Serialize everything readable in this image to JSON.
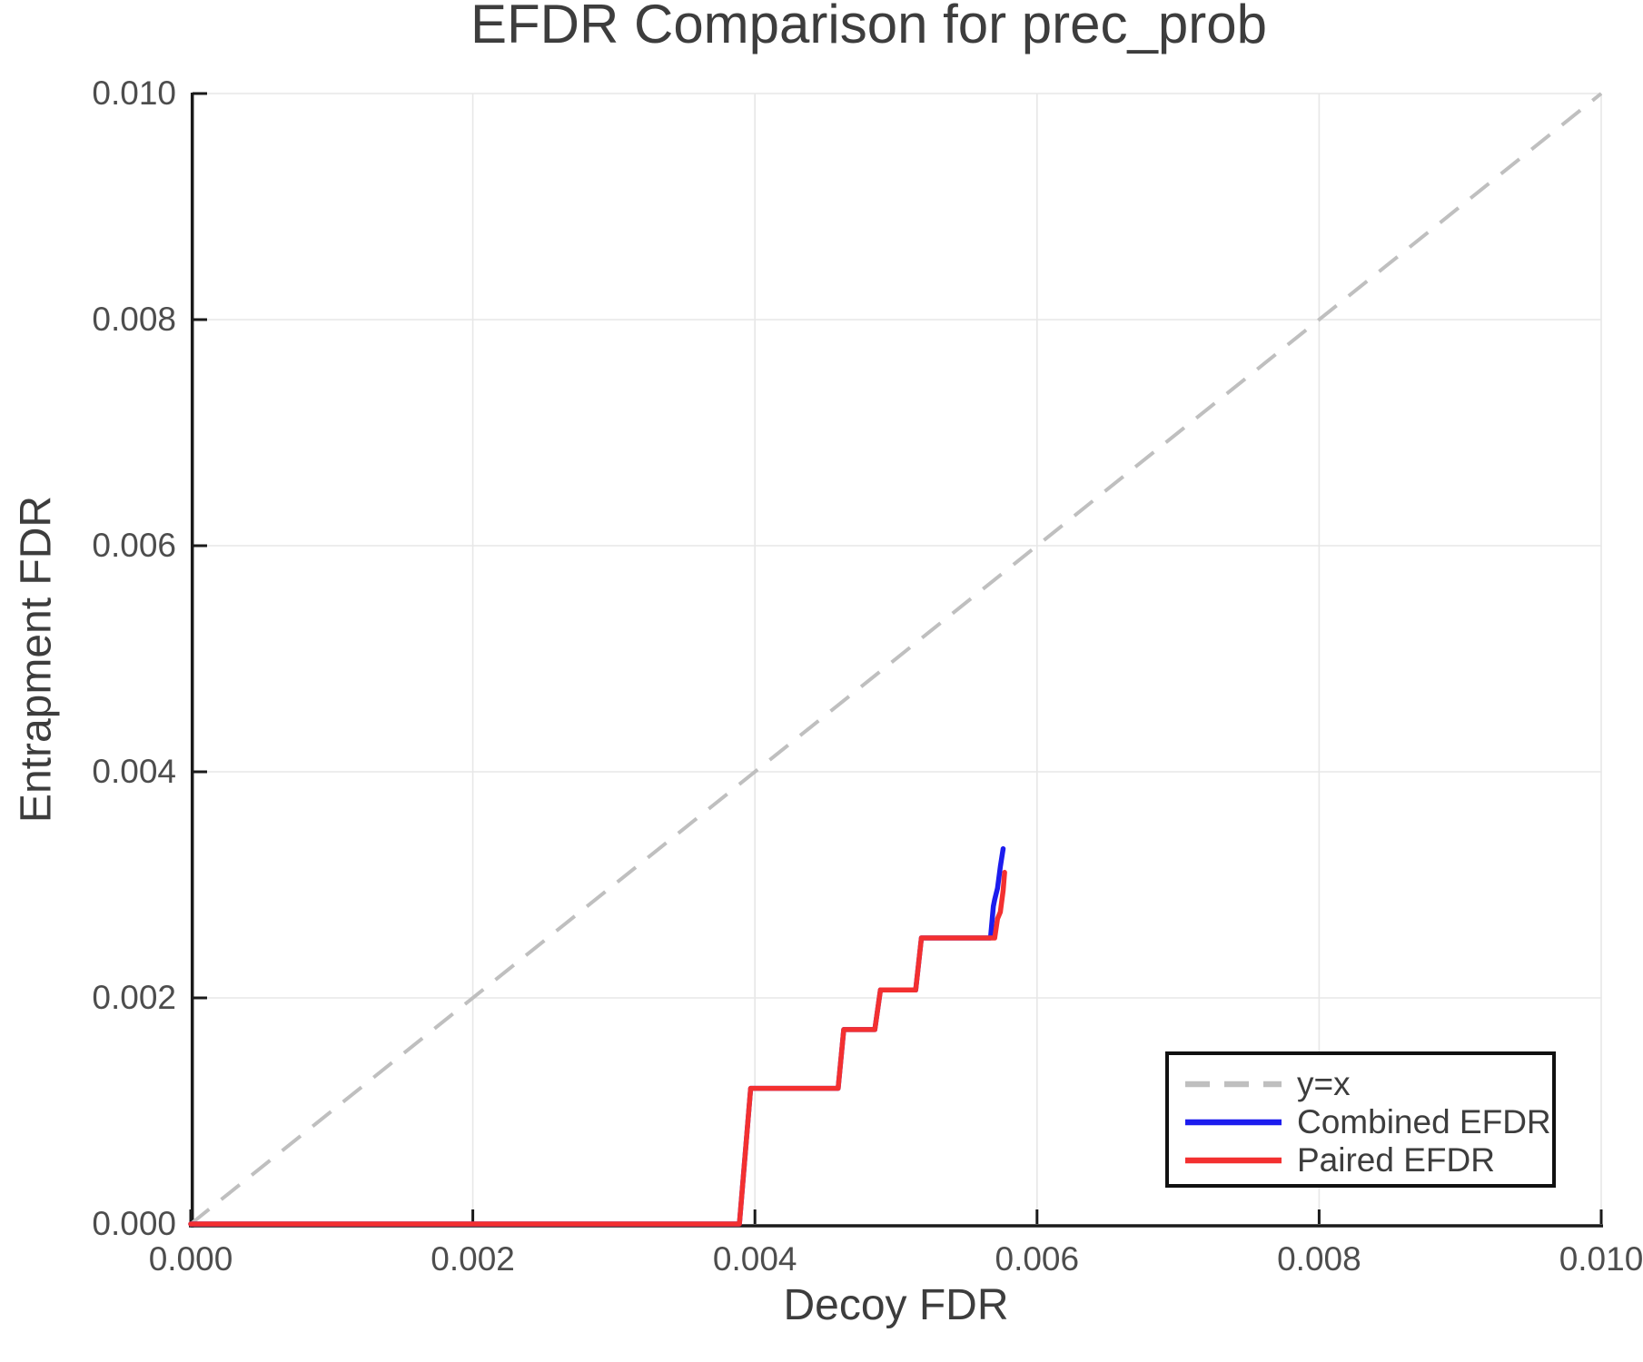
{
  "figure": {
    "title": "EFDR Comparison for prec_prob",
    "xlabel": "Decoy FDR",
    "ylabel": "Entrapment FDR"
  },
  "legend": {
    "items": [
      {
        "label": "y=x",
        "color": "#bfbfbf",
        "dashed": true
      },
      {
        "label": "Combined EFDR",
        "color": "#1c1cee",
        "dashed": false
      },
      {
        "label": "Paired EFDR",
        "color": "#f33030",
        "dashed": false
      }
    ]
  },
  "colors": {
    "background": "#ffffff",
    "spine": "#1a1a1a",
    "grid": "#e7e7e7",
    "title_text": "#3d3d3d",
    "tick_text": "#4d4d4d",
    "reference_line": "#bfbfbf",
    "combined_line": "#1c1cee",
    "paired_line": "#f33030"
  },
  "chart_data": {
    "type": "line",
    "title": "EFDR Comparison for prec_prob",
    "xlabel": "Decoy FDR",
    "ylabel": "Entrapment FDR",
    "xlim": [
      0.0,
      0.01
    ],
    "ylim": [
      0.0,
      0.01
    ],
    "grid": true,
    "legend_position": "lower right",
    "x_ticks": {
      "values": [
        0.0,
        0.002,
        0.004,
        0.006,
        0.008,
        0.01
      ],
      "labels": [
        "0.000",
        "0.002",
        "0.004",
        "0.006",
        "0.008",
        "0.010"
      ]
    },
    "y_ticks": {
      "values": [
        0.0,
        0.002,
        0.004,
        0.006,
        0.008,
        0.01
      ],
      "labels": [
        "0.000",
        "0.002",
        "0.004",
        "0.006",
        "0.008",
        "0.010"
      ]
    },
    "series": [
      {
        "name": "y=x",
        "color": "#bfbfbf",
        "style": "dashed",
        "points": [
          [
            0.0,
            0.0
          ],
          [
            0.01,
            0.01
          ]
        ]
      },
      {
        "name": "Combined EFDR",
        "color": "#1c1cee",
        "style": "solid",
        "points": [
          [
            0.0,
            0.0
          ],
          [
            0.00389,
            0.0
          ],
          [
            0.00397,
            0.0012
          ],
          [
            0.00459,
            0.0012
          ],
          [
            0.00463,
            0.00172
          ],
          [
            0.00485,
            0.00172
          ],
          [
            0.00489,
            0.00207
          ],
          [
            0.00514,
            0.00207
          ],
          [
            0.00518,
            0.00253
          ],
          [
            0.00567,
            0.00253
          ],
          [
            0.00569,
            0.00281
          ],
          [
            0.0057,
            0.00287
          ],
          [
            0.00572,
            0.00297
          ],
          [
            0.00574,
            0.00316
          ],
          [
            0.00576,
            0.00332
          ]
        ]
      },
      {
        "name": "Paired EFDR",
        "color": "#f33030",
        "style": "solid",
        "points": [
          [
            0.0,
            0.0
          ],
          [
            0.00389,
            0.0
          ],
          [
            0.00397,
            0.0012
          ],
          [
            0.00459,
            0.0012
          ],
          [
            0.00463,
            0.00172
          ],
          [
            0.00485,
            0.00172
          ],
          [
            0.00489,
            0.00207
          ],
          [
            0.00514,
            0.00207
          ],
          [
            0.00518,
            0.00253
          ],
          [
            0.0057,
            0.00253
          ],
          [
            0.00572,
            0.0027
          ],
          [
            0.00574,
            0.00276
          ],
          [
            0.00576,
            0.00295
          ],
          [
            0.00577,
            0.00311
          ]
        ]
      }
    ]
  }
}
